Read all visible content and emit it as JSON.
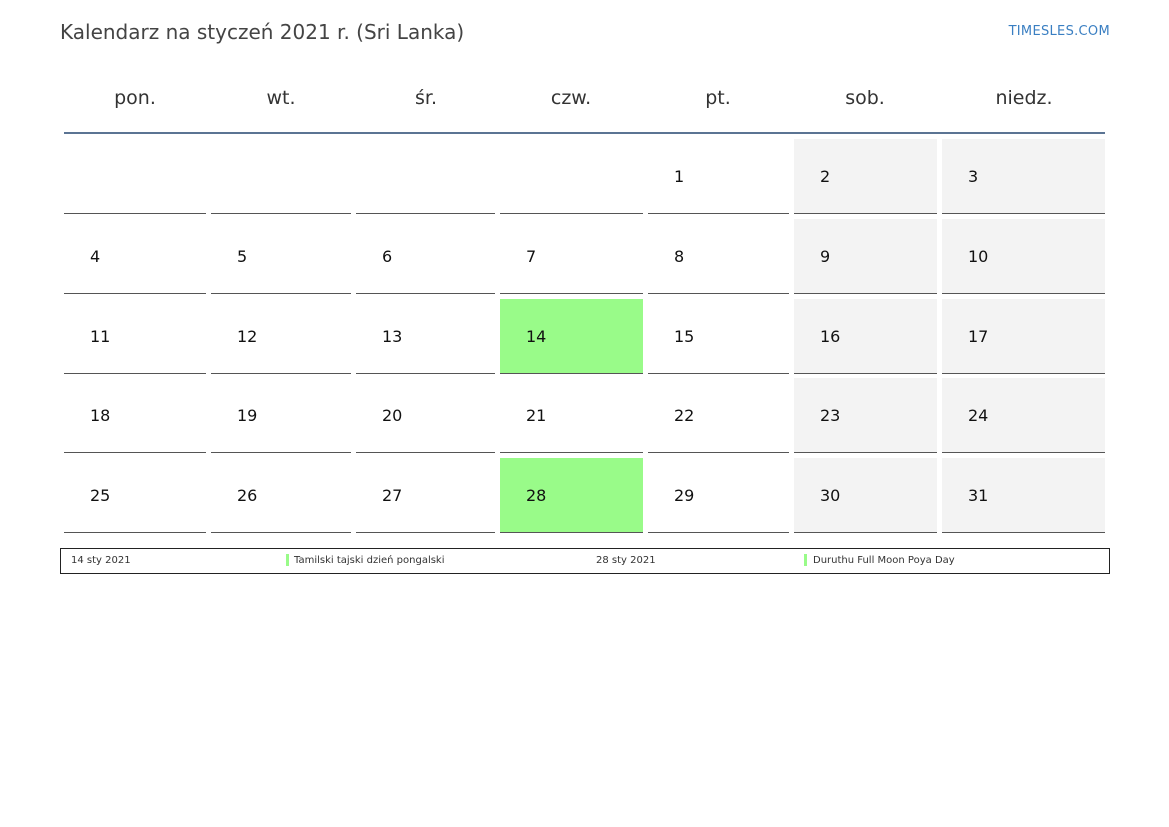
{
  "header": {
    "title": "Kalendarz na styczeń 2021 r. (Sri Lanka)",
    "brand": "TIMESLES.COM"
  },
  "weekdays": [
    "pon.",
    "wt.",
    "śr.",
    "czw.",
    "pt.",
    "sob.",
    "niedz."
  ],
  "calendar": {
    "weeks": [
      [
        "",
        "",
        "",
        "",
        "1",
        "2",
        "3"
      ],
      [
        "4",
        "5",
        "6",
        "7",
        "8",
        "9",
        "10"
      ],
      [
        "11",
        "12",
        "13",
        "14",
        "15",
        "16",
        "17"
      ],
      [
        "18",
        "19",
        "20",
        "21",
        "22",
        "23",
        "24"
      ],
      [
        "25",
        "26",
        "27",
        "28",
        "29",
        "30",
        "31"
      ]
    ],
    "holidays": [
      "14",
      "28"
    ]
  },
  "colors": {
    "holiday": "#99fb89",
    "weekend": "#f3f3f3",
    "header_rule": "#5b7493",
    "brand": "#3a7fc2"
  },
  "legend": {
    "entries": [
      {
        "date": "14 sty 2021",
        "name": "Tamilski tajski dzień pongalski"
      },
      {
        "date": "28 sty 2021",
        "name": "Duruthu Full Moon Poya Day"
      }
    ]
  }
}
